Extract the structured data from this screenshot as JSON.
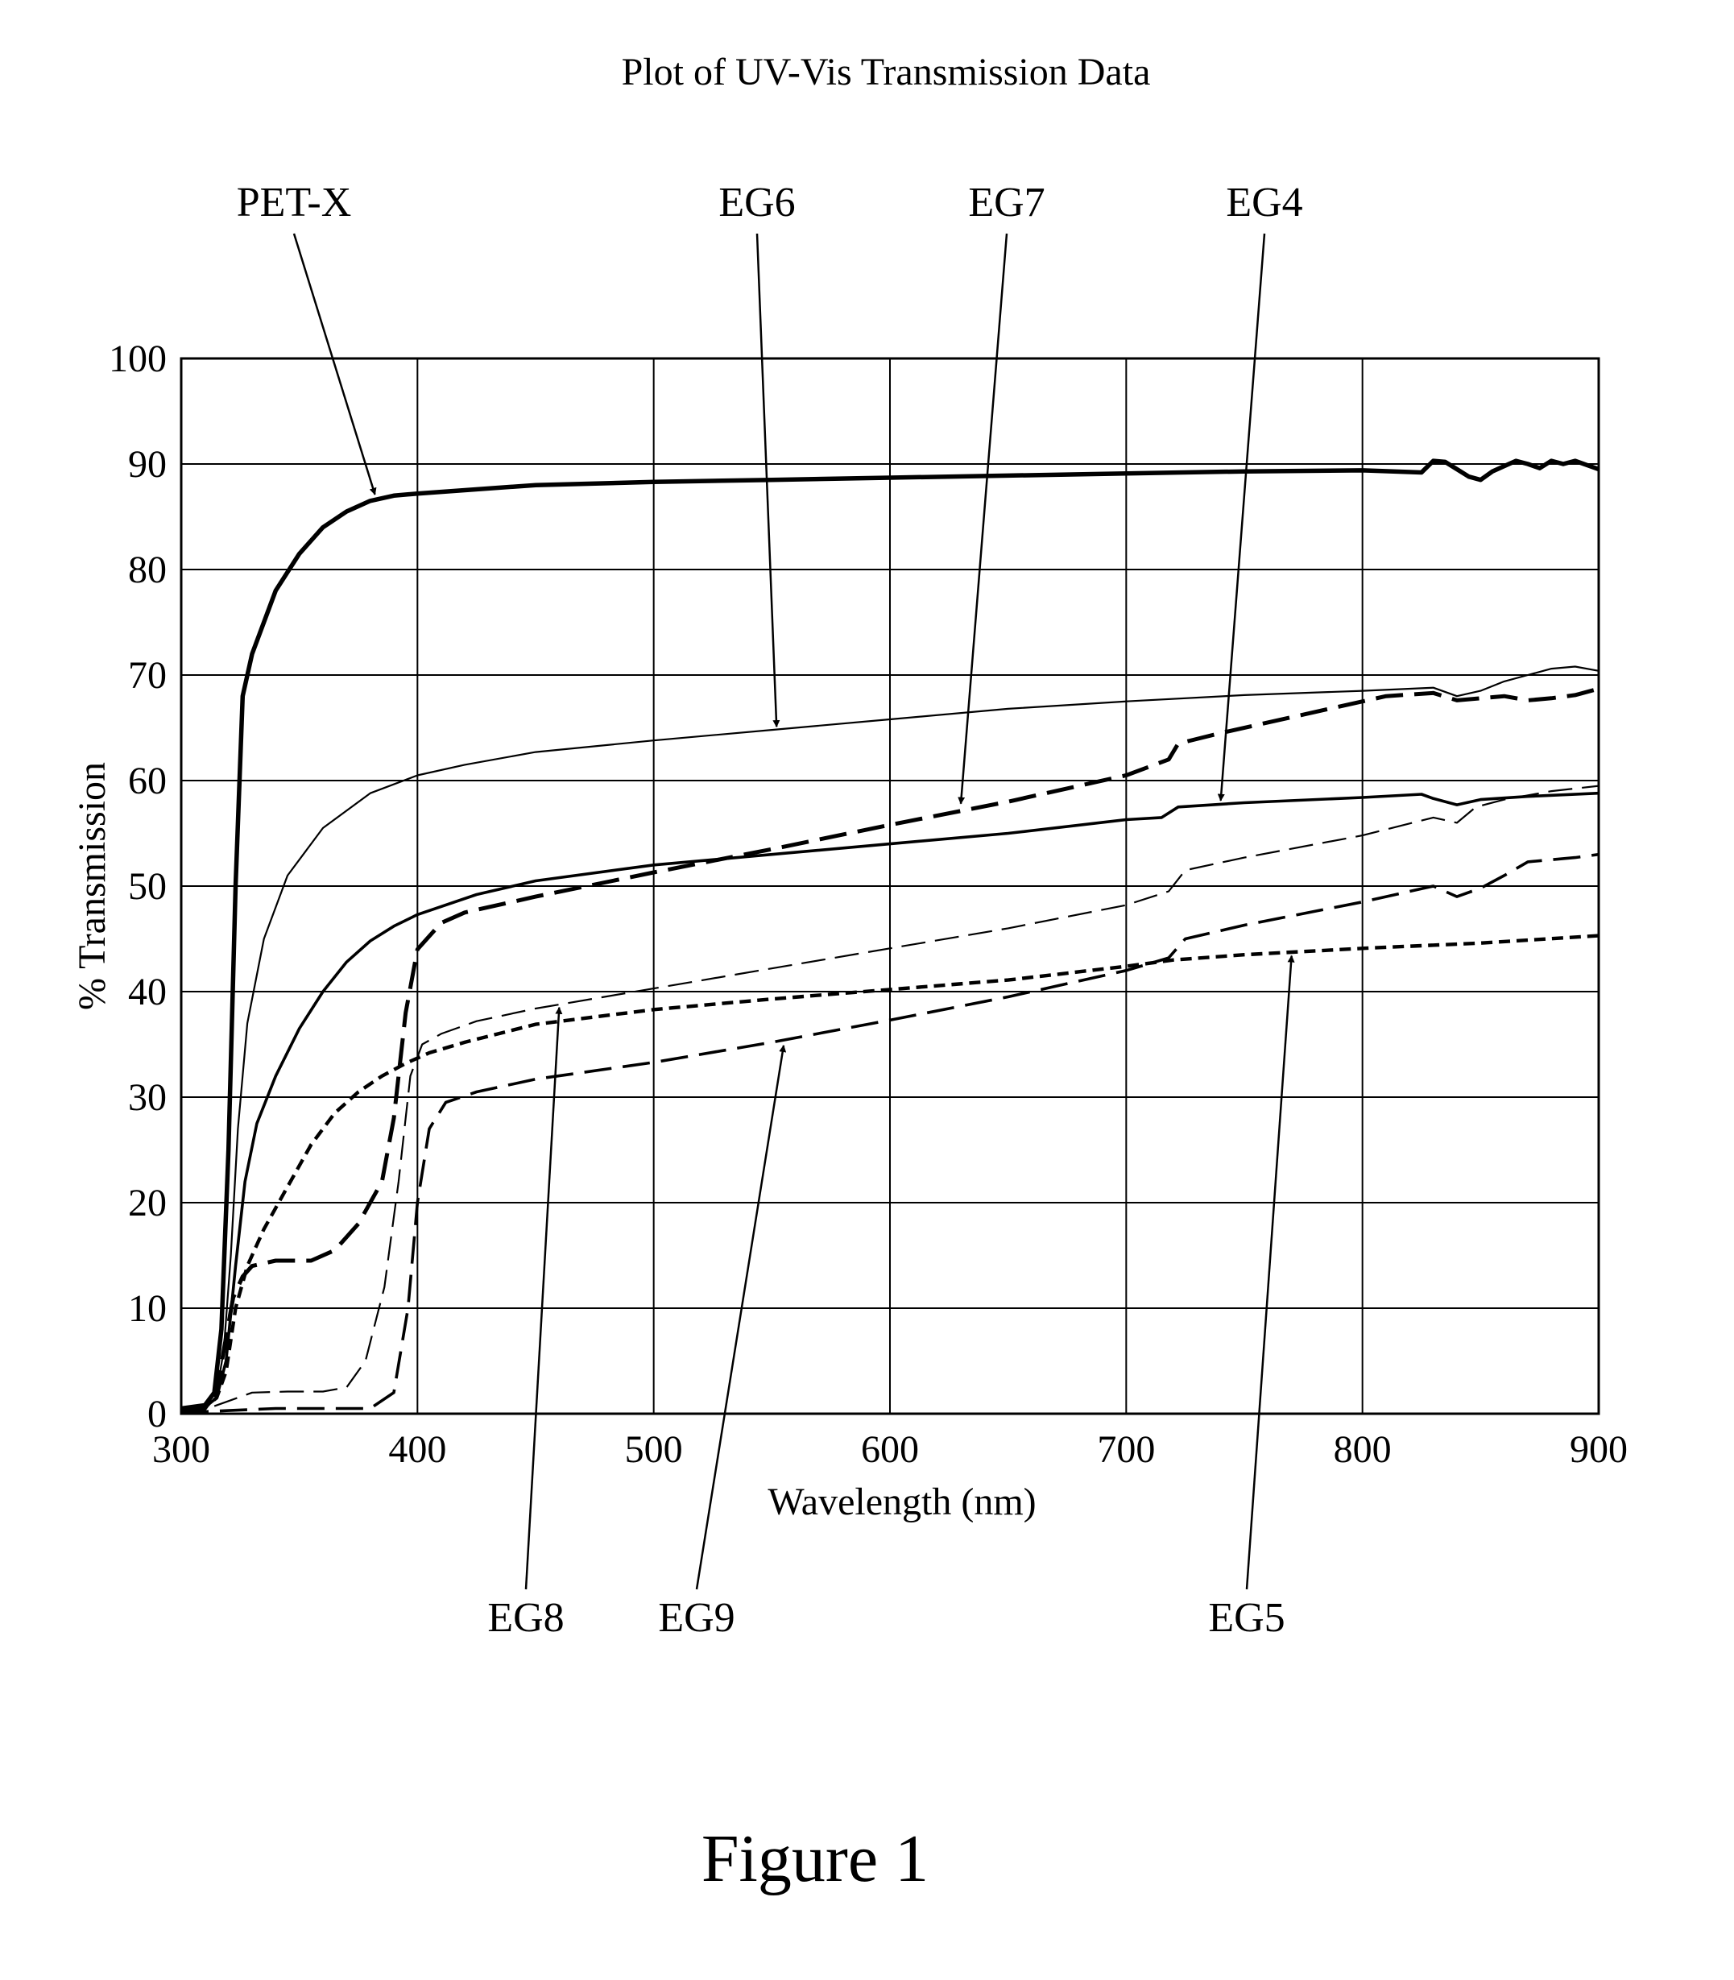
{
  "chart_data": {
    "type": "line",
    "title": "Plot of UV-Vis Transmission Data",
    "xlabel": "Wavelength (nm)",
    "ylabel": "% Transmission",
    "xlim": [
      300,
      900
    ],
    "ylim": [
      0,
      100
    ],
    "xticks": [
      300,
      400,
      500,
      600,
      700,
      800,
      900
    ],
    "yticks": [
      0,
      10,
      20,
      30,
      40,
      50,
      60,
      70,
      80,
      90,
      100
    ],
    "grid": true,
    "series": [
      {
        "name": "PET-X",
        "style": "thick-solid",
        "points": [
          [
            300,
            0.5
          ],
          [
            310,
            0.8
          ],
          [
            314,
            2
          ],
          [
            317,
            8
          ],
          [
            320,
            25
          ],
          [
            323,
            50
          ],
          [
            326,
            68
          ],
          [
            330,
            72
          ],
          [
            340,
            78
          ],
          [
            350,
            81.5
          ],
          [
            360,
            84
          ],
          [
            370,
            85.5
          ],
          [
            380,
            86.5
          ],
          [
            390,
            87
          ],
          [
            400,
            87.2
          ],
          [
            450,
            88
          ],
          [
            500,
            88.3
          ],
          [
            550,
            88.5
          ],
          [
            600,
            88.7
          ],
          [
            650,
            88.9
          ],
          [
            700,
            89.1
          ],
          [
            750,
            89.3
          ],
          [
            800,
            89.4
          ],
          [
            825,
            89.2
          ],
          [
            830,
            90.3
          ],
          [
            835,
            90.2
          ],
          [
            840,
            89.5
          ],
          [
            845,
            88.8
          ],
          [
            850,
            88.5
          ],
          [
            855,
            89.3
          ],
          [
            860,
            89.8
          ],
          [
            865,
            90.3
          ],
          [
            870,
            90.0
          ],
          [
            875,
            89.6
          ],
          [
            880,
            90.3
          ],
          [
            885,
            90.0
          ],
          [
            890,
            90.3
          ],
          [
            895,
            89.9
          ],
          [
            900,
            89.5
          ]
        ]
      },
      {
        "name": "EG6",
        "style": "thin-solid",
        "points": [
          [
            300,
            0.5
          ],
          [
            310,
            0.8
          ],
          [
            315,
            2
          ],
          [
            318,
            6
          ],
          [
            321,
            15
          ],
          [
            324,
            27
          ],
          [
            328,
            37
          ],
          [
            335,
            45
          ],
          [
            345,
            51
          ],
          [
            360,
            55.5
          ],
          [
            380,
            58.8
          ],
          [
            400,
            60.5
          ],
          [
            420,
            61.5
          ],
          [
            450,
            62.7
          ],
          [
            500,
            63.8
          ],
          [
            550,
            64.8
          ],
          [
            600,
            65.8
          ],
          [
            650,
            66.8
          ],
          [
            700,
            67.5
          ],
          [
            750,
            68.1
          ],
          [
            800,
            68.5
          ],
          [
            830,
            68.8
          ],
          [
            840,
            68
          ],
          [
            850,
            68.5
          ],
          [
            860,
            69.4
          ],
          [
            870,
            70
          ],
          [
            880,
            70.6
          ],
          [
            890,
            70.8
          ],
          [
            900,
            70.4
          ]
        ]
      },
      {
        "name": "EG7",
        "style": "thick-dashed",
        "points": [
          [
            300,
            0.3
          ],
          [
            310,
            0.5
          ],
          [
            315,
            2
          ],
          [
            318,
            6
          ],
          [
            322,
            11
          ],
          [
            326,
            13
          ],
          [
            330,
            14
          ],
          [
            340,
            14.5
          ],
          [
            355,
            14.5
          ],
          [
            365,
            15.5
          ],
          [
            375,
            18
          ],
          [
            385,
            22
          ],
          [
            390,
            28
          ],
          [
            395,
            38
          ],
          [
            400,
            44
          ],
          [
            410,
            46.5
          ],
          [
            420,
            47.5
          ],
          [
            450,
            49
          ],
          [
            500,
            51.3
          ],
          [
            550,
            53.5
          ],
          [
            600,
            55.8
          ],
          [
            650,
            58
          ],
          [
            700,
            60.5
          ],
          [
            718,
            62
          ],
          [
            722,
            63.5
          ],
          [
            740,
            64.5
          ],
          [
            780,
            66.5
          ],
          [
            810,
            68
          ],
          [
            830,
            68.3
          ],
          [
            840,
            67.6
          ],
          [
            850,
            67.8
          ],
          [
            860,
            68
          ],
          [
            870,
            67.6
          ],
          [
            880,
            67.8
          ],
          [
            890,
            68.1
          ],
          [
            900,
            68.7
          ]
        ]
      },
      {
        "name": "EG4",
        "style": "medium-solid",
        "points": [
          [
            300,
            0.3
          ],
          [
            310,
            0.6
          ],
          [
            315,
            1.5
          ],
          [
            319,
            5
          ],
          [
            323,
            14
          ],
          [
            327,
            22
          ],
          [
            332,
            27.5
          ],
          [
            340,
            32
          ],
          [
            350,
            36.5
          ],
          [
            360,
            40
          ],
          [
            370,
            42.8
          ],
          [
            380,
            44.8
          ],
          [
            390,
            46.2
          ],
          [
            400,
            47.3
          ],
          [
            425,
            49.2
          ],
          [
            450,
            50.5
          ],
          [
            500,
            52
          ],
          [
            550,
            53
          ],
          [
            600,
            54
          ],
          [
            650,
            55
          ],
          [
            700,
            56.3
          ],
          [
            715,
            56.5
          ],
          [
            722,
            57.5
          ],
          [
            750,
            57.9
          ],
          [
            800,
            58.4
          ],
          [
            825,
            58.7
          ],
          [
            830,
            58.3
          ],
          [
            840,
            57.7
          ],
          [
            850,
            58.2
          ],
          [
            870,
            58.5
          ],
          [
            900,
            58.8
          ]
        ]
      },
      {
        "name": "EG8",
        "style": "thin-dashed",
        "points": [
          [
            300,
            0.2
          ],
          [
            310,
            0.4
          ],
          [
            320,
            1.2
          ],
          [
            330,
            2
          ],
          [
            345,
            2.1
          ],
          [
            360,
            2.1
          ],
          [
            370,
            2.5
          ],
          [
            378,
            5
          ],
          [
            386,
            12
          ],
          [
            392,
            22
          ],
          [
            397,
            32
          ],
          [
            402,
            35
          ],
          [
            410,
            36
          ],
          [
            425,
            37.2
          ],
          [
            450,
            38.4
          ],
          [
            500,
            40.3
          ],
          [
            550,
            42.2
          ],
          [
            600,
            44.1
          ],
          [
            650,
            46
          ],
          [
            700,
            48.2
          ],
          [
            718,
            49.5
          ],
          [
            725,
            51.5
          ],
          [
            750,
            52.7
          ],
          [
            800,
            54.8
          ],
          [
            830,
            56.5
          ],
          [
            840,
            56
          ],
          [
            848,
            57.5
          ],
          [
            860,
            58.2
          ],
          [
            880,
            59
          ],
          [
            900,
            59.5
          ]
        ]
      },
      {
        "name": "EG9",
        "style": "medium-dashed",
        "points": [
          [
            300,
            0.1
          ],
          [
            320,
            0.3
          ],
          [
            340,
            0.5
          ],
          [
            360,
            0.5
          ],
          [
            380,
            0.5
          ],
          [
            390,
            2
          ],
          [
            396,
            10
          ],
          [
            400,
            20
          ],
          [
            405,
            27
          ],
          [
            412,
            29.5
          ],
          [
            425,
            30.5
          ],
          [
            450,
            31.7
          ],
          [
            500,
            33.3
          ],
          [
            550,
            35.2
          ],
          [
            600,
            37.3
          ],
          [
            650,
            39.5
          ],
          [
            700,
            42
          ],
          [
            718,
            43.2
          ],
          [
            725,
            45
          ],
          [
            750,
            46.3
          ],
          [
            800,
            48.5
          ],
          [
            830,
            50
          ],
          [
            840,
            49
          ],
          [
            850,
            49.8
          ],
          [
            860,
            51
          ],
          [
            870,
            52.3
          ],
          [
            880,
            52.5
          ],
          [
            890,
            52.7
          ],
          [
            900,
            53
          ]
        ]
      },
      {
        "name": "EG5",
        "style": "short-dashed",
        "points": [
          [
            300,
            0.3
          ],
          [
            310,
            0.6
          ],
          [
            315,
            1.5
          ],
          [
            319,
            4
          ],
          [
            323,
            10
          ],
          [
            328,
            14
          ],
          [
            335,
            17.5
          ],
          [
            345,
            21.5
          ],
          [
            355,
            25.5
          ],
          [
            365,
            28.5
          ],
          [
            375,
            30.5
          ],
          [
            385,
            32
          ],
          [
            395,
            33.2
          ],
          [
            405,
            34.2
          ],
          [
            420,
            35.2
          ],
          [
            450,
            36.9
          ],
          [
            500,
            38.3
          ],
          [
            550,
            39.3
          ],
          [
            600,
            40.2
          ],
          [
            650,
            41.1
          ],
          [
            700,
            42.4
          ],
          [
            720,
            43
          ],
          [
            750,
            43.5
          ],
          [
            800,
            44.1
          ],
          [
            850,
            44.6
          ],
          [
            900,
            45.3
          ]
        ]
      }
    ],
    "callouts": [
      {
        "label": "PET-X",
        "series": "PET-X",
        "x": 382,
        "y": 86.8
      },
      {
        "label": "EG6",
        "series": "EG6",
        "x": 552,
        "y": 64.8
      },
      {
        "label": "EG7",
        "series": "EG7",
        "x": 630,
        "y": 57.5
      },
      {
        "label": "EG4",
        "series": "EG4",
        "x": 740,
        "y": 57.8
      },
      {
        "label": "EG8",
        "series": "EG8",
        "x": 460,
        "y": 38.8
      },
      {
        "label": "EG9",
        "series": "EG9",
        "x": 555,
        "y": 35.2
      },
      {
        "label": "EG5",
        "series": "EG5",
        "x": 770,
        "y": 43.7
      }
    ],
    "caption": "Figure 1"
  }
}
